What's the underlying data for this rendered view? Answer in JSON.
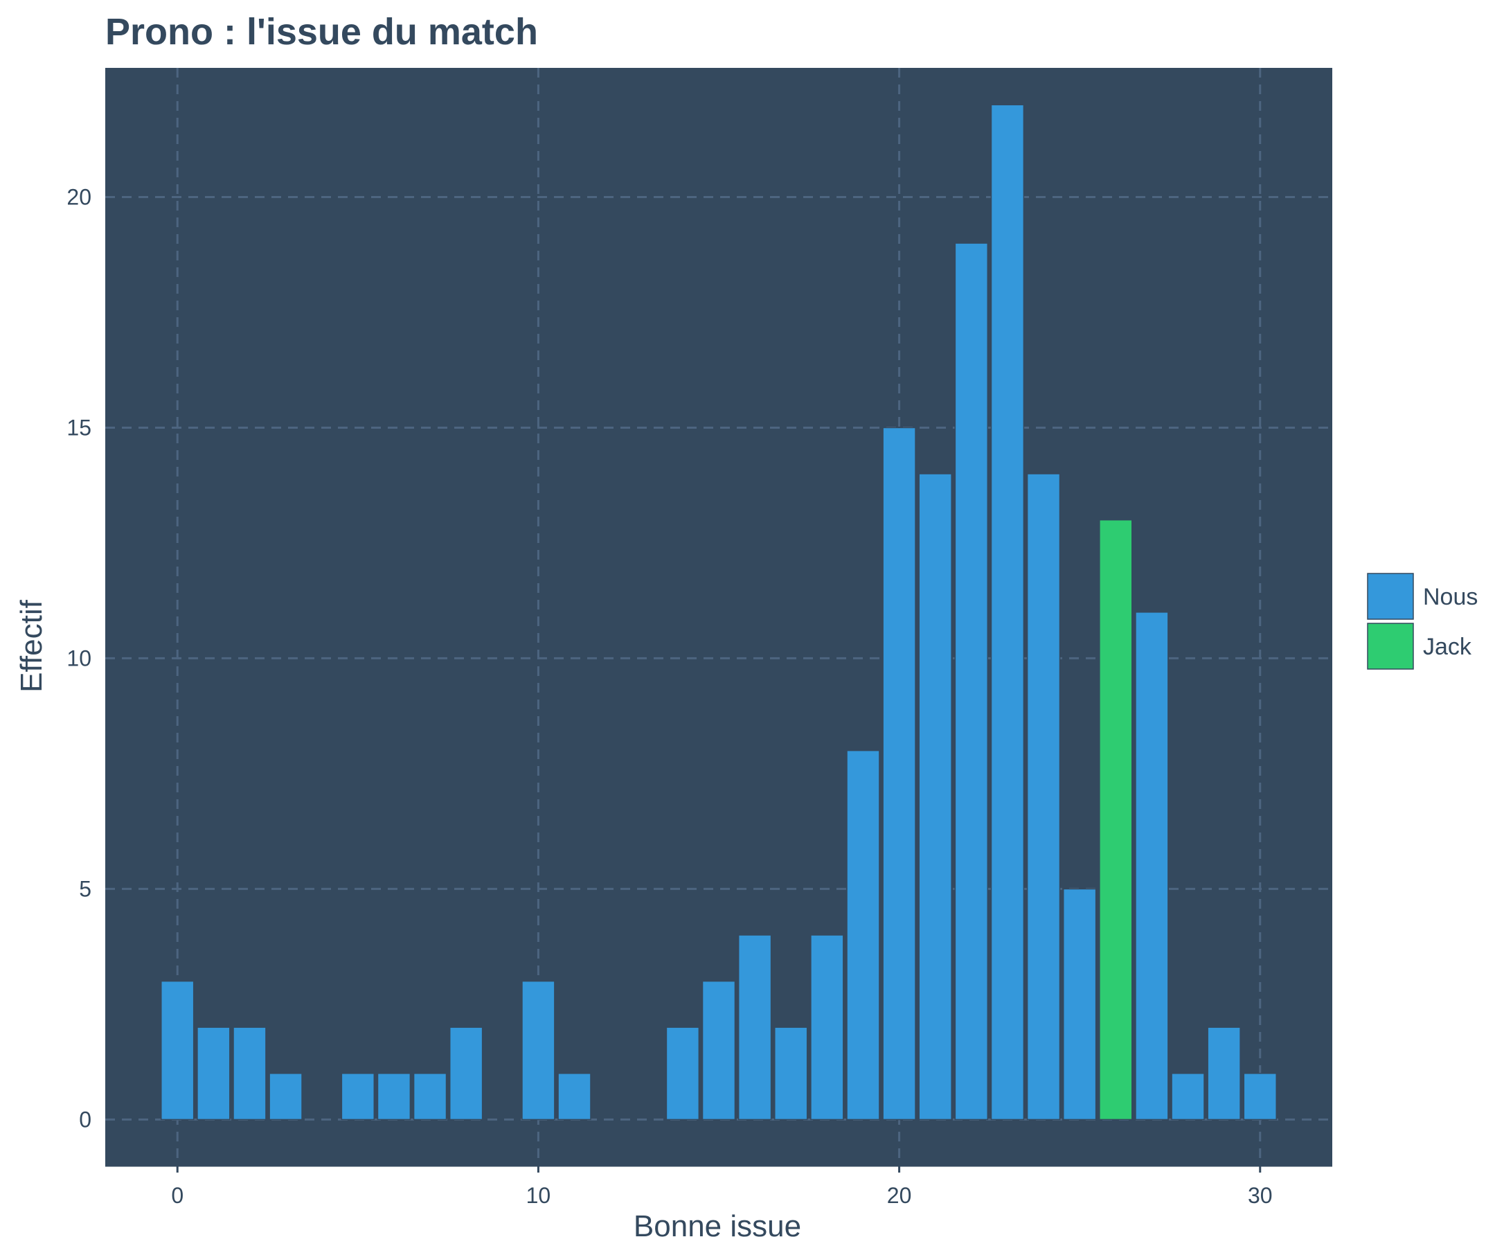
{
  "chart_data": {
    "type": "bar",
    "title": "Prono : l'issue du match",
    "xlabel": "Bonne issue",
    "ylabel": "Effectif",
    "xlim": [
      -2,
      32
    ],
    "ylim": [
      -1,
      22.8
    ],
    "x_ticks": [
      0,
      10,
      20,
      30
    ],
    "y_ticks": [
      0,
      5,
      10,
      15,
      20
    ],
    "x_tick_labels": [
      "0",
      "10",
      "20",
      "30"
    ],
    "y_tick_labels": [
      "0",
      "5",
      "10",
      "15",
      "20"
    ],
    "grid": true,
    "legend_position": "right",
    "series": [
      {
        "name": "Nous",
        "color": "#3498db",
        "points": [
          {
            "x": 0,
            "y": 3
          },
          {
            "x": 1,
            "y": 2
          },
          {
            "x": 2,
            "y": 2
          },
          {
            "x": 3,
            "y": 1
          },
          {
            "x": 5,
            "y": 1
          },
          {
            "x": 6,
            "y": 1
          },
          {
            "x": 7,
            "y": 1
          },
          {
            "x": 8,
            "y": 2
          },
          {
            "x": 10,
            "y": 3
          },
          {
            "x": 11,
            "y": 1
          },
          {
            "x": 14,
            "y": 2
          },
          {
            "x": 15,
            "y": 3
          },
          {
            "x": 16,
            "y": 4
          },
          {
            "x": 17,
            "y": 2
          },
          {
            "x": 18,
            "y": 4
          },
          {
            "x": 19,
            "y": 8
          },
          {
            "x": 20,
            "y": 15
          },
          {
            "x": 21,
            "y": 14
          },
          {
            "x": 22,
            "y": 19
          },
          {
            "x": 23,
            "y": 22
          },
          {
            "x": 24,
            "y": 14
          },
          {
            "x": 25,
            "y": 5
          },
          {
            "x": 27,
            "y": 11
          },
          {
            "x": 28,
            "y": 1
          },
          {
            "x": 29,
            "y": 2
          },
          {
            "x": 30,
            "y": 1
          }
        ]
      },
      {
        "name": "Jack",
        "color": "#2ecc71",
        "points": [
          {
            "x": 26,
            "y": 13
          }
        ]
      }
    ],
    "colors": {
      "panel_background": "#34495e",
      "grid": "#4d6580",
      "text": "#34495e",
      "bar_outline": "#34495e"
    }
  }
}
